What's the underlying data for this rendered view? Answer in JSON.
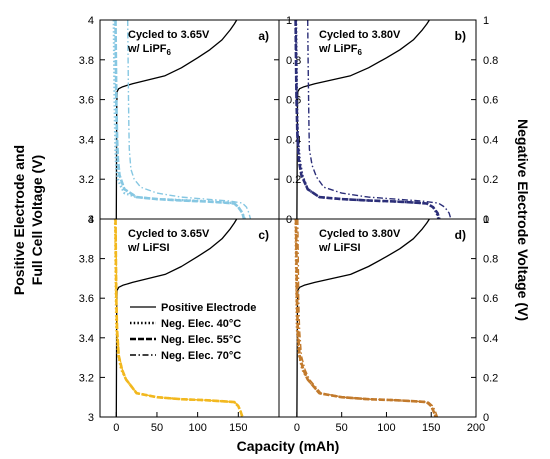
{
  "figure": {
    "left_ylabel_line1": "Positive Electrode and",
    "left_ylabel_line2": "Full Cell Voltage (V)",
    "right_ylabel": "Negative Electrode Voltage (V)",
    "xlabel": "Capacity (mAh)"
  },
  "legend": {
    "items": [
      {
        "label": "Positive Electrode",
        "style": "solid"
      },
      {
        "label": "Neg. Elec. 40°C",
        "style": "dotted"
      },
      {
        "label": "Neg. Elec. 55°C",
        "style": "dashed"
      },
      {
        "label": "Neg. Elec. 70°C",
        "style": "dashdot"
      }
    ]
  },
  "chart_data": [
    {
      "type": "line",
      "panel_label": "a)",
      "title_line1": "Cycled to 3.65V",
      "title_line2": "w/ LiPF",
      "title_subscript": "6",
      "color": "#86c7e2",
      "xlim": [
        -20,
        200
      ],
      "ylim": [
        3,
        4
      ],
      "y2lim": [
        0,
        1
      ],
      "xticks": [],
      "yticks": [
        "3",
        "3.2",
        "3.4",
        "3.6",
        "3.8",
        "4"
      ],
      "y2ticks": [
        "0",
        "0.2",
        "0.4",
        "0.6",
        "0.8",
        "1"
      ],
      "series": [
        {
          "name": "Positive Electrode",
          "axis": "left",
          "x": [
            0,
            0.5,
            1,
            3,
            8,
            20,
            40,
            60,
            80,
            100,
            115,
            130,
            140,
            145,
            148
          ],
          "y": [
            3.0,
            3.55,
            3.64,
            3.655,
            3.665,
            3.68,
            3.7,
            3.72,
            3.76,
            3.81,
            3.85,
            3.9,
            3.95,
            3.98,
            4.0
          ]
        },
        {
          "name": "Neg. Elec. 40°C",
          "axis": "right",
          "x": [
            -3,
            -2.5,
            -2,
            -1.5,
            -1,
            0,
            2,
            5,
            10,
            25,
            50,
            80,
            110,
            130,
            145,
            150,
            155,
            158
          ],
          "y": [
            1.0,
            0.8,
            0.6,
            0.45,
            0.35,
            0.25,
            0.2,
            0.17,
            0.13,
            0.11,
            0.1,
            0.095,
            0.09,
            0.085,
            0.08,
            0.06,
            0.03,
            0.0
          ]
        },
        {
          "name": "Neg. Elec. 55°C",
          "axis": "right",
          "x": [
            -1,
            -0.5,
            0,
            1,
            2,
            4,
            10,
            25,
            50,
            80,
            110,
            130,
            145,
            150,
            155,
            157
          ],
          "y": [
            1.0,
            0.8,
            0.6,
            0.4,
            0.3,
            0.22,
            0.15,
            0.11,
            0.1,
            0.093,
            0.088,
            0.083,
            0.078,
            0.06,
            0.03,
            0.0
          ]
        },
        {
          "name": "Neg. Elec. 70°C",
          "axis": "right",
          "x": [
            14,
            14.5,
            15,
            15.5,
            16,
            18,
            22,
            30,
            50,
            80,
            110,
            140,
            155,
            160,
            163,
            165
          ],
          "y": [
            1.0,
            0.8,
            0.6,
            0.45,
            0.35,
            0.25,
            0.2,
            0.16,
            0.13,
            0.11,
            0.1,
            0.09,
            0.08,
            0.06,
            0.03,
            0.0
          ]
        }
      ]
    },
    {
      "type": "line",
      "panel_label": "b)",
      "title_line1": "Cycled to 3.80V",
      "title_line2": "w/ LiPF",
      "title_subscript": "6",
      "color": "#2b2e78",
      "xlim": [
        -20,
        200
      ],
      "ylim": [
        3,
        4
      ],
      "y2lim": [
        0,
        1
      ],
      "xticks": [],
      "yticks": [],
      "y2ticks": [
        "0",
        "0.2",
        "0.4",
        "0.6",
        "0.8",
        "1"
      ],
      "series": [
        {
          "name": "Positive Electrode",
          "axis": "left",
          "x": [
            0,
            0.5,
            1,
            3,
            8,
            20,
            40,
            60,
            80,
            100,
            115,
            130,
            140,
            145,
            148
          ],
          "y": [
            3.0,
            3.55,
            3.64,
            3.655,
            3.665,
            3.68,
            3.7,
            3.72,
            3.76,
            3.81,
            3.85,
            3.9,
            3.95,
            3.98,
            4.0
          ]
        },
        {
          "name": "Neg. Elec. 40°C",
          "axis": "right",
          "x": [
            -1,
            -0.5,
            0,
            1,
            3,
            6,
            12,
            25,
            50,
            80,
            110,
            130,
            145,
            152,
            156,
            158
          ],
          "y": [
            1.0,
            0.8,
            0.6,
            0.42,
            0.3,
            0.22,
            0.15,
            0.11,
            0.1,
            0.093,
            0.088,
            0.083,
            0.078,
            0.06,
            0.03,
            0.0
          ]
        },
        {
          "name": "Neg. Elec. 55°C",
          "axis": "right",
          "x": [
            -1.5,
            -1,
            -0.5,
            0.5,
            2,
            5,
            12,
            25,
            50,
            80,
            110,
            130,
            145,
            152,
            157,
            159
          ],
          "y": [
            1.0,
            0.8,
            0.6,
            0.42,
            0.3,
            0.22,
            0.15,
            0.11,
            0.1,
            0.093,
            0.088,
            0.083,
            0.078,
            0.06,
            0.03,
            0.0
          ]
        },
        {
          "name": "Neg. Elec. 70°C",
          "axis": "right",
          "x": [
            12,
            12.5,
            13,
            13.5,
            14,
            17,
            22,
            30,
            50,
            80,
            110,
            140,
            158,
            165,
            170,
            172
          ],
          "y": [
            1.0,
            0.8,
            0.6,
            0.45,
            0.35,
            0.27,
            0.21,
            0.16,
            0.13,
            0.11,
            0.1,
            0.09,
            0.08,
            0.06,
            0.03,
            0.0
          ]
        }
      ]
    },
    {
      "type": "line",
      "panel_label": "c)",
      "title_line1": "Cycled to 3.65V",
      "title_line2": "w/ LiFSI",
      "title_subscript": "",
      "color": "#f2b81f",
      "xlim": [
        -20,
        200
      ],
      "ylim": [
        3,
        4
      ],
      "y2lim": [
        0,
        1
      ],
      "xticks": [
        "0",
        "50",
        "100",
        "150"
      ],
      "yticks": [
        "3",
        "3.2",
        "3.4",
        "3.6",
        "3.8",
        "4"
      ],
      "y2ticks": [],
      "series": [
        {
          "name": "Positive Electrode",
          "axis": "left",
          "x": [
            0,
            0.5,
            1,
            3,
            8,
            20,
            40,
            60,
            80,
            100,
            115,
            130,
            140,
            145,
            148
          ],
          "y": [
            3.0,
            3.55,
            3.64,
            3.655,
            3.665,
            3.68,
            3.7,
            3.72,
            3.76,
            3.81,
            3.85,
            3.9,
            3.95,
            3.98,
            4.0
          ]
        },
        {
          "name": "Neg. Elec. 40°C",
          "axis": "right",
          "x": [
            -1.5,
            -1,
            -0.5,
            0,
            2,
            6,
            12,
            25,
            50,
            80,
            110,
            130,
            145,
            150,
            153,
            155
          ],
          "y": [
            1.0,
            0.8,
            0.6,
            0.45,
            0.32,
            0.24,
            0.19,
            0.12,
            0.1,
            0.09,
            0.085,
            0.08,
            0.075,
            0.055,
            0.025,
            0.0
          ]
        },
        {
          "name": "Neg. Elec. 55°C",
          "axis": "right",
          "x": [
            -1,
            -0.5,
            0,
            1,
            3,
            7,
            12,
            25,
            50,
            80,
            110,
            130,
            145,
            150,
            153,
            155
          ],
          "y": [
            1.0,
            0.8,
            0.6,
            0.44,
            0.31,
            0.24,
            0.19,
            0.12,
            0.1,
            0.09,
            0.085,
            0.08,
            0.075,
            0.055,
            0.025,
            0.0
          ]
        },
        {
          "name": "Neg. Elec. 70°C",
          "axis": "right",
          "x": [
            -0.5,
            0,
            0.5,
            1.5,
            3.5,
            7.5,
            12.5,
            25.5,
            50.5,
            80.5,
            110.5,
            130.5,
            145.5,
            150.5,
            153.5,
            155.5
          ],
          "y": [
            1.0,
            0.8,
            0.6,
            0.44,
            0.31,
            0.24,
            0.19,
            0.12,
            0.1,
            0.09,
            0.085,
            0.08,
            0.075,
            0.055,
            0.025,
            0.0
          ]
        }
      ]
    },
    {
      "type": "line",
      "panel_label": "d)",
      "title_line1": "Cycled to 3.80V",
      "title_line2": "w/ LiFSI",
      "title_subscript": "",
      "color": "#c27a2c",
      "xlim": [
        -20,
        200
      ],
      "ylim": [
        3,
        4
      ],
      "y2lim": [
        0,
        1
      ],
      "xticks": [
        "0",
        "50",
        "100",
        "150",
        "200"
      ],
      "yticks": [],
      "y2ticks": [
        "0",
        "0.2",
        "0.4",
        "0.6",
        "0.8",
        "1"
      ],
      "series": [
        {
          "name": "Positive Electrode",
          "axis": "left",
          "x": [
            0,
            0.5,
            1,
            3,
            8,
            20,
            40,
            60,
            80,
            100,
            115,
            130,
            140,
            145,
            148
          ],
          "y": [
            3.0,
            3.55,
            3.64,
            3.655,
            3.665,
            3.68,
            3.7,
            3.72,
            3.76,
            3.81,
            3.85,
            3.9,
            3.95,
            3.98,
            4.0
          ]
        },
        {
          "name": "Neg. Elec. 40°C",
          "axis": "right",
          "x": [
            -1.5,
            -1,
            -0.5,
            0,
            2,
            6,
            12,
            25,
            50,
            80,
            110,
            130,
            145,
            150,
            153,
            155
          ],
          "y": [
            1.0,
            0.8,
            0.6,
            0.45,
            0.32,
            0.24,
            0.19,
            0.12,
            0.1,
            0.09,
            0.085,
            0.08,
            0.075,
            0.055,
            0.025,
            0.0
          ]
        },
        {
          "name": "Neg. Elec. 55°C",
          "axis": "right",
          "x": [
            -1,
            -0.5,
            0,
            1,
            3,
            7,
            12,
            25,
            50,
            80,
            110,
            130,
            145,
            150,
            153,
            155
          ],
          "y": [
            1.0,
            0.8,
            0.6,
            0.44,
            0.31,
            0.24,
            0.19,
            0.12,
            0.1,
            0.09,
            0.085,
            0.08,
            0.075,
            0.055,
            0.025,
            0.0
          ]
        },
        {
          "name": "Neg. Elec. 70°C",
          "axis": "right",
          "x": [
            1,
            1.5,
            2,
            3,
            5,
            9,
            14,
            27,
            52,
            82,
            112,
            132,
            147,
            152,
            155,
            157
          ],
          "y": [
            1.0,
            0.8,
            0.6,
            0.44,
            0.31,
            0.24,
            0.19,
            0.12,
            0.1,
            0.09,
            0.085,
            0.08,
            0.075,
            0.055,
            0.025,
            0.0
          ]
        }
      ]
    }
  ]
}
